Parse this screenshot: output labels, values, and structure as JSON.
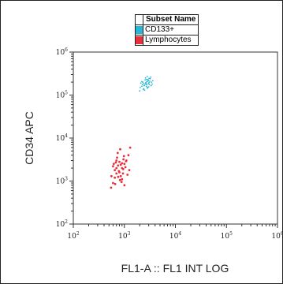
{
  "chart_data": {
    "type": "scatter",
    "title": "",
    "xlabel": "FL1-A :: FL1 INT LOG",
    "ylabel": "CD34 APC",
    "x_scale": "log",
    "y_scale": "log",
    "xlim": [
      100,
      1000000
    ],
    "ylim": [
      100,
      1000000
    ],
    "x_ticks": [
      {
        "base": "10",
        "exp": "2"
      },
      {
        "base": "10",
        "exp": "3"
      },
      {
        "base": "10",
        "exp": "4"
      },
      {
        "base": "10",
        "exp": "5"
      },
      {
        "base": "10",
        "exp": "6"
      }
    ],
    "y_ticks": [
      {
        "base": "10",
        "exp": "2"
      },
      {
        "base": "10",
        "exp": "3"
      },
      {
        "base": "10",
        "exp": "4"
      },
      {
        "base": "10",
        "exp": "5"
      },
      {
        "base": "10",
        "exp": "6"
      }
    ],
    "grid": false,
    "legend_position": "top-right",
    "legend_header": "Subset Name",
    "series": [
      {
        "name": "CD133+",
        "color": "#29b6d6",
        "points": [
          [
            2200,
            160000
          ],
          [
            2600,
            190000
          ],
          [
            2900,
            210000
          ],
          [
            2400,
            140000
          ],
          [
            3100,
            175000
          ],
          [
            2700,
            230000
          ],
          [
            2000,
            125000
          ],
          [
            3400,
            200000
          ],
          [
            2500,
            170000
          ],
          [
            2800,
            150000
          ],
          [
            3200,
            240000
          ],
          [
            2300,
            200000
          ],
          [
            2650,
            180000
          ],
          [
            3000,
            155000
          ],
          [
            2100,
            190000
          ],
          [
            3600,
            215000
          ],
          [
            2450,
            165000
          ],
          [
            2750,
            205000
          ],
          [
            2950,
            185000
          ],
          [
            2350,
            135000
          ],
          [
            3300,
            260000
          ],
          [
            2550,
            225000
          ],
          [
            2850,
            145000
          ],
          [
            3050,
            195000
          ],
          [
            2250,
            175000
          ],
          [
            2600,
            250000
          ],
          [
            3500,
            180000
          ],
          [
            2050,
            150000
          ],
          [
            2900,
            230000
          ],
          [
            2700,
            160000
          ],
          [
            3150,
            210000
          ],
          [
            2400,
            185000
          ],
          [
            2800,
            270000
          ],
          [
            3350,
            165000
          ],
          [
            2500,
            130000
          ],
          [
            2950,
            220000
          ],
          [
            2200,
            205000
          ],
          [
            3050,
            245000
          ],
          [
            2650,
            195000
          ],
          [
            2750,
            175000
          ]
        ]
      },
      {
        "name": "Lymphocytes",
        "color": "#e8303a",
        "points": [
          [
            700,
            2000
          ],
          [
            800,
            1600
          ],
          [
            900,
            2600
          ],
          [
            650,
            1200
          ],
          [
            1100,
            3000
          ],
          [
            600,
            900
          ],
          [
            750,
            2300
          ],
          [
            850,
            1300
          ],
          [
            950,
            1900
          ],
          [
            1000,
            2500
          ],
          [
            550,
            700
          ],
          [
            700,
            1500
          ],
          [
            1200,
            4000
          ],
          [
            800,
            2800
          ],
          [
            900,
            1100
          ],
          [
            650,
            1800
          ],
          [
            1050,
            2100
          ],
          [
            720,
            3500
          ],
          [
            880,
            950
          ],
          [
            780,
            1700
          ],
          [
            960,
            3200
          ],
          [
            600,
            2200
          ],
          [
            1150,
            1400
          ],
          [
            680,
            2700
          ],
          [
            820,
            1050
          ],
          [
            740,
            4500
          ],
          [
            900,
            2000
          ],
          [
            1300,
            6000
          ],
          [
            560,
            1300
          ],
          [
            850,
            2400
          ],
          [
            1000,
            800
          ],
          [
            700,
            3000
          ],
          [
            940,
            1500
          ],
          [
            760,
            1250
          ],
          [
            1080,
            2900
          ],
          [
            620,
            2500
          ],
          [
            1250,
            1800
          ],
          [
            830,
            5500
          ],
          [
            660,
            850
          ],
          [
            980,
            3800
          ]
        ]
      }
    ]
  }
}
